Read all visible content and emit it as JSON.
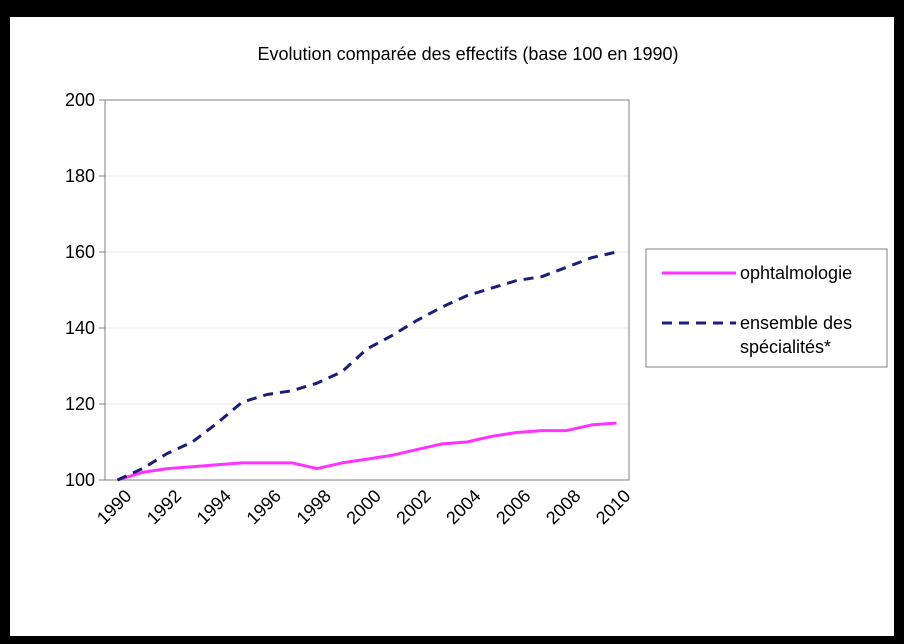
{
  "chart_data": {
    "type": "line",
    "title": "Evolution comparée des effectifs  (base 100 en 1990)",
    "xlabel": "",
    "ylabel": "",
    "x": [
      1990,
      1991,
      1992,
      1993,
      1994,
      1995,
      1996,
      1997,
      1998,
      1999,
      2000,
      2001,
      2002,
      2003,
      2004,
      2005,
      2006,
      2007,
      2008,
      2009,
      2010
    ],
    "xtick_labels": [
      "1990",
      "1992",
      "1994",
      "1996",
      "1998",
      "2000",
      "2002",
      "2004",
      "2006",
      "2008",
      "2010"
    ],
    "xlim": [
      1990,
      2010
    ],
    "ylim": [
      100,
      200
    ],
    "yticks": [
      100,
      120,
      140,
      160,
      180,
      200
    ],
    "grid": "horizontal",
    "legend_position": "right",
    "series": [
      {
        "name": "ophtalmologie",
        "color": "#ff33ff",
        "style": "solid",
        "values": [
          100,
          102,
          103,
          103.5,
          104,
          104.5,
          104.5,
          104.5,
          103,
          104.5,
          105.5,
          106.5,
          108,
          109.5,
          110,
          111.5,
          112.5,
          113,
          113,
          114.5,
          115
        ]
      },
      {
        "name": "ensemble des spécialités*",
        "color": "#1c1c7a",
        "style": "dashed",
        "values": [
          100,
          103,
          107,
          110,
          115,
          120.5,
          122.5,
          123.5,
          125.5,
          128.5,
          134.5,
          138,
          142,
          145.5,
          148.5,
          150.5,
          152.5,
          153.5,
          156,
          158.5,
          160
        ]
      }
    ]
  }
}
